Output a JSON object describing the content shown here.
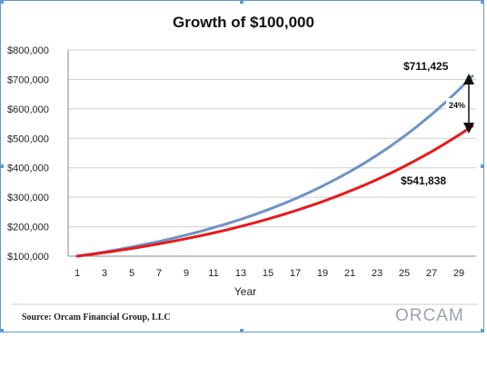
{
  "chart_data": {
    "type": "line",
    "title": "Growth of $100,000",
    "xlabel": "Year",
    "ylabel": "",
    "x_ticks": [
      "1",
      "3",
      "5",
      "7",
      "9",
      "11",
      "13",
      "15",
      "17",
      "19",
      "21",
      "23",
      "25",
      "27",
      "29"
    ],
    "y_ticks": [
      "$100,000",
      "$200,000",
      "$300,000",
      "$400,000",
      "$500,000",
      "$600,000",
      "$700,000",
      "$800,000"
    ],
    "xlim": [
      1,
      30
    ],
    "ylim": [
      100000,
      800000
    ],
    "grid": true,
    "x": [
      1,
      2,
      3,
      4,
      5,
      6,
      7,
      8,
      9,
      10,
      11,
      12,
      13,
      14,
      15,
      16,
      17,
      18,
      19,
      20,
      21,
      22,
      23,
      24,
      25,
      26,
      27,
      28,
      29,
      30
    ],
    "series": [
      {
        "color": "#6d93c9",
        "values": [
          100000,
          107000,
          114490,
          122504,
          131080,
          140255,
          150073,
          160578,
          171819,
          183846,
          196715,
          210485,
          225219,
          240985,
          257853,
          275903,
          295216,
          315882,
          337993,
          361653,
          386968,
          414056,
          443040,
          474053,
          507237,
          542743,
          580735,
          621386,
          664883,
          711425
        ]
      },
      {
        "color": "#e8191b",
        "values": [
          100000,
          106000,
          112360,
          119102,
          126248,
          133823,
          141852,
          150363,
          159385,
          168948,
          179085,
          189830,
          201220,
          213293,
          226090,
          239656,
          254035,
          269277,
          285434,
          302560,
          320714,
          339956,
          360354,
          381975,
          404893,
          429187,
          454938,
          482235,
          511169,
          541838
        ]
      }
    ],
    "annotations": {
      "top_value": "$711,425",
      "bottom_value": "$541,838",
      "difference": "24%"
    },
    "source": "Source: Orcam Financial Group, LLC",
    "logo": "ORCAM"
  }
}
